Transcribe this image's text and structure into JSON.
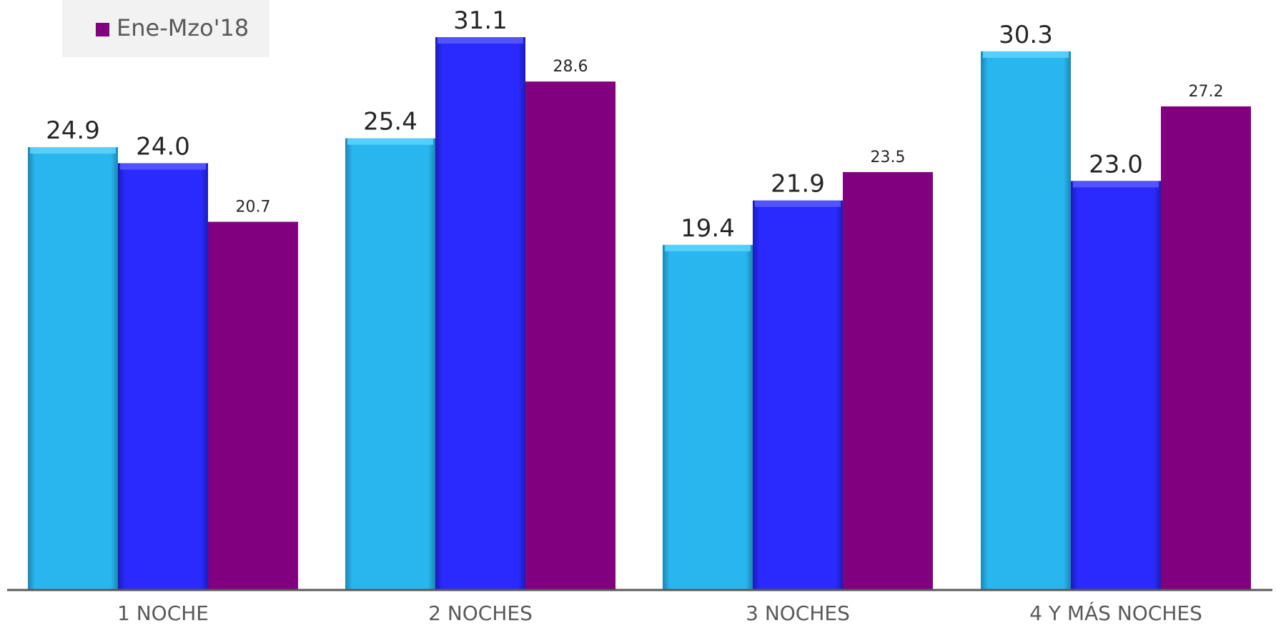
{
  "chart_data": {
    "type": "bar",
    "title": "",
    "xlabel": "",
    "ylabel": "",
    "categories": [
      "1 NOCHE",
      "2 NOCHES",
      "3 NOCHES",
      "4 Y MÁS NOCHES"
    ],
    "series": [
      {
        "values": [
          24.9,
          25.4,
          19.4,
          30.3
        ]
      },
      {
        "values": [
          24.0,
          31.1,
          21.9,
          23.0
        ]
      },
      {
        "name": "Ene-Mzo'18",
        "values": [
          20.7,
          28.6,
          23.5,
          27.2
        ]
      }
    ],
    "ylim": [
      0,
      31.1
    ],
    "grid": false,
    "legend_position": "top-left",
    "colors": [
      "#29b6ef",
      "#2a2aff",
      "#800080"
    ],
    "axis_color": "#595959",
    "label_color": "#262626"
  }
}
